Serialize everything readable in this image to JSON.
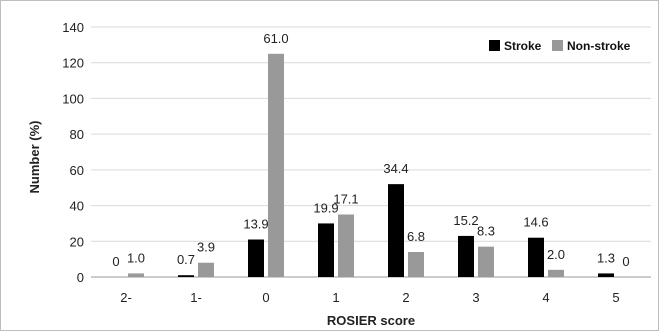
{
  "chart_data": {
    "type": "bar",
    "xlabel": "ROSIER score",
    "ylabel": "Number (%)",
    "ylim": [
      0,
      140
    ],
    "yticks": [
      0,
      20,
      40,
      60,
      80,
      100,
      120,
      140
    ],
    "grid": true,
    "legend_position": "top-right",
    "categories": [
      "2-",
      "1-",
      "0",
      "1",
      "2",
      "3",
      "4",
      "5"
    ],
    "series": [
      {
        "name": "Stroke",
        "color": "#000000",
        "values": [
          0,
          1,
          21,
          30,
          52,
          23,
          22,
          2
        ],
        "data_labels": [
          "0",
          "0.7",
          "13.9",
          "19.9",
          "34.4",
          "15.2",
          "14.6",
          "1.3"
        ]
      },
      {
        "name": "Non-stroke",
        "color": "#999999",
        "values": [
          2,
          8,
          125,
          35,
          14,
          17,
          4,
          0
        ],
        "data_labels": [
          "1.0",
          "3.9",
          "61.0",
          "17.1",
          "6.8",
          "8.3",
          "2.0",
          "0"
        ]
      }
    ]
  }
}
